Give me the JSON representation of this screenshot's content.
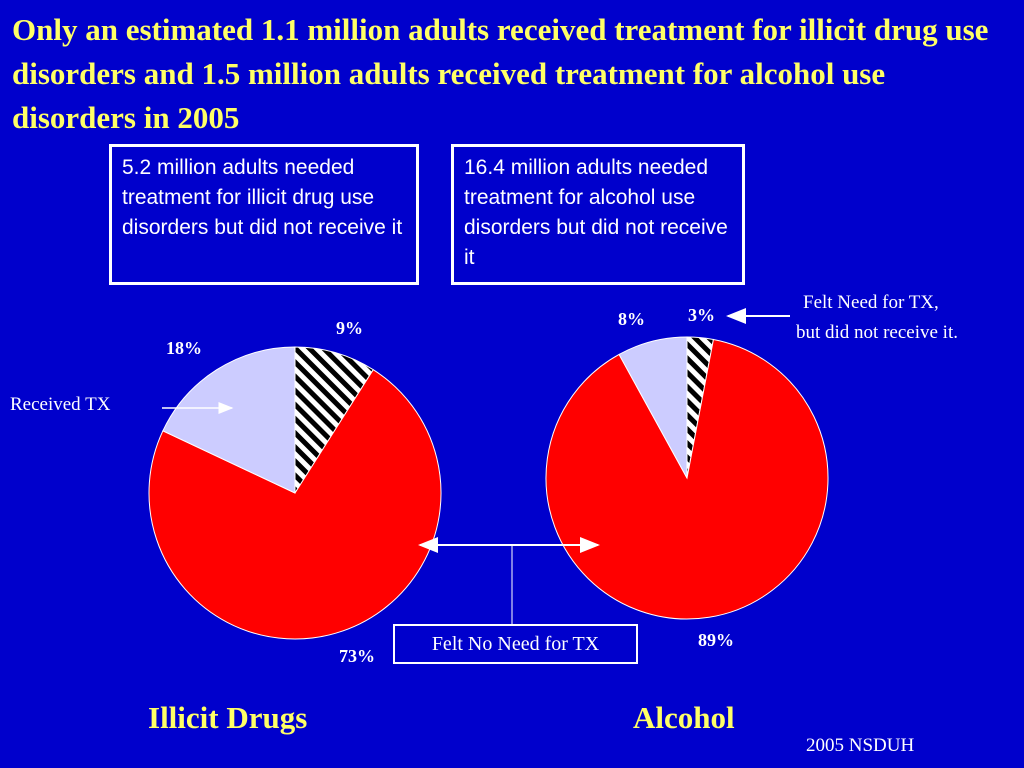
{
  "title": "Only an estimated 1.1 million adults received treatment for illicit drug use disorders and 1.5 million adults received treatment for alcohol use disorders in 2005",
  "boxes": {
    "left": "5.2 million  adults needed treatment for illicit drug use disorders but did not receive it",
    "right": "16.4  million adults needed treatment for alcohol use disorders but did not receive it"
  },
  "annotations": {
    "felt_need_line1": "Felt Need for TX,",
    "felt_need_line2": "but did not receive it.",
    "received_tx": "Received TX",
    "felt_no_need": "Felt No Need for TX"
  },
  "source": "2005 NSDUH",
  "colors": {
    "background": "#0000cc",
    "title": "#ffff66",
    "felt_no_need": "#ff0000",
    "received_tx": "#ccccff",
    "felt_need": "hatched black/white"
  },
  "chart_data": [
    {
      "type": "pie",
      "title": "Illicit Drugs",
      "slices": [
        {
          "label": "Felt Need for TX, but did not receive it.",
          "value": 9,
          "text": "9%"
        },
        {
          "label": "Felt No Need for TX",
          "value": 73,
          "text": "73%"
        },
        {
          "label": "Received TX",
          "value": 18,
          "text": "18%"
        }
      ]
    },
    {
      "type": "pie",
      "title": "Alcohol",
      "slices": [
        {
          "label": "Felt Need for TX, but did not receive it.",
          "value": 3,
          "text": "3%"
        },
        {
          "label": "Felt No Need for TX",
          "value": 89,
          "text": "89%"
        },
        {
          "label": "Received TX",
          "value": 8,
          "text": "8%"
        }
      ]
    }
  ]
}
